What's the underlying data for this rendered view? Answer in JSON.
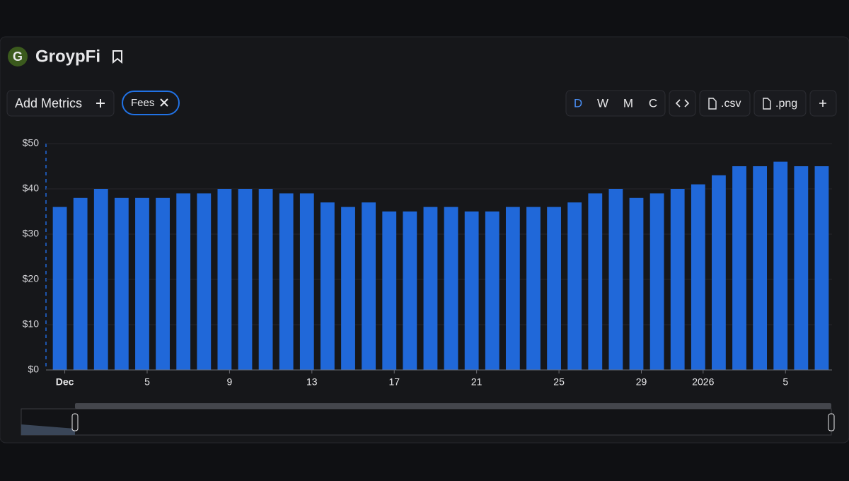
{
  "header": {
    "logo": "G",
    "title": "GroypFi"
  },
  "toolbar": {
    "add_metrics": "Add Metrics",
    "metric": "Fees",
    "intervals": [
      "D",
      "W",
      "M",
      "C"
    ],
    "csv": ".csv",
    "png": ".png"
  },
  "chart_data": {
    "type": "bar",
    "categories": [
      "Dec",
      null,
      null,
      null,
      "5",
      null,
      null,
      null,
      "9",
      null,
      null,
      null,
      "13",
      null,
      null,
      null,
      "17",
      null,
      null,
      null,
      "21",
      null,
      null,
      null,
      "25",
      null,
      null,
      null,
      "29",
      null,
      null,
      "2026",
      null,
      null,
      null,
      "5",
      null,
      null
    ],
    "values": [
      36,
      38,
      40,
      38,
      38,
      38,
      39,
      39,
      40,
      40,
      40,
      39,
      39,
      37,
      36,
      37,
      35,
      35,
      36,
      36,
      35,
      35,
      36,
      36,
      36,
      37,
      39,
      40,
      38,
      39,
      40,
      41,
      43,
      45,
      45,
      46,
      45,
      45
    ],
    "color": "#2068d9",
    "ylim": [
      0,
      50
    ],
    "yticks": [
      {
        "value": 0,
        "label": "$0"
      },
      {
        "value": 10,
        "label": "$10"
      },
      {
        "value": 20,
        "label": "$20"
      },
      {
        "value": 30,
        "label": "$30"
      },
      {
        "value": 40,
        "label": "$40"
      },
      {
        "value": 50,
        "label": "$50"
      }
    ],
    "grid": true
  }
}
